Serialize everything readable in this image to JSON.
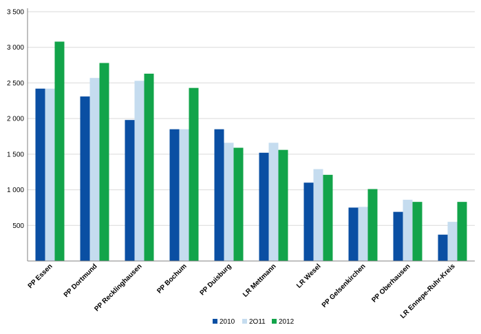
{
  "chart_data": {
    "type": "bar",
    "title": "",
    "xlabel": "",
    "ylabel": "",
    "ylim": [
      0,
      3500
    ],
    "yticks": [
      500,
      1000,
      1500,
      2000,
      2500,
      3000,
      3500
    ],
    "ytick_labels": [
      "500",
      "1 000",
      "1 500",
      "2 000",
      "2 500",
      "3 000",
      "3 500"
    ],
    "grid": true,
    "legend_position": "bottom-center",
    "categories": [
      "PP Essen",
      "PP Dortmund",
      "PP Recklinghausen",
      "PP Bochum",
      "PP Duisburg",
      "LR Mettmann",
      "LR Wesel",
      "PP Gelsenkirchen",
      "PP Oberhausen",
      "LR Ennepe-Ruhr-Kreis"
    ],
    "series": [
      {
        "name": "2010",
        "color": "#0a4fa3",
        "values": [
          2420,
          2310,
          1980,
          1850,
          1850,
          1520,
          1100,
          750,
          690,
          370
        ]
      },
      {
        "name": "2O11",
        "color": "#c5dcef",
        "values": [
          2420,
          2570,
          2530,
          1850,
          1660,
          1660,
          1290,
          760,
          860,
          550
        ]
      },
      {
        "name": "2012",
        "color": "#12a44a",
        "values": [
          3080,
          2780,
          2630,
          2430,
          1590,
          1560,
          1210,
          1010,
          830,
          830
        ]
      }
    ]
  }
}
